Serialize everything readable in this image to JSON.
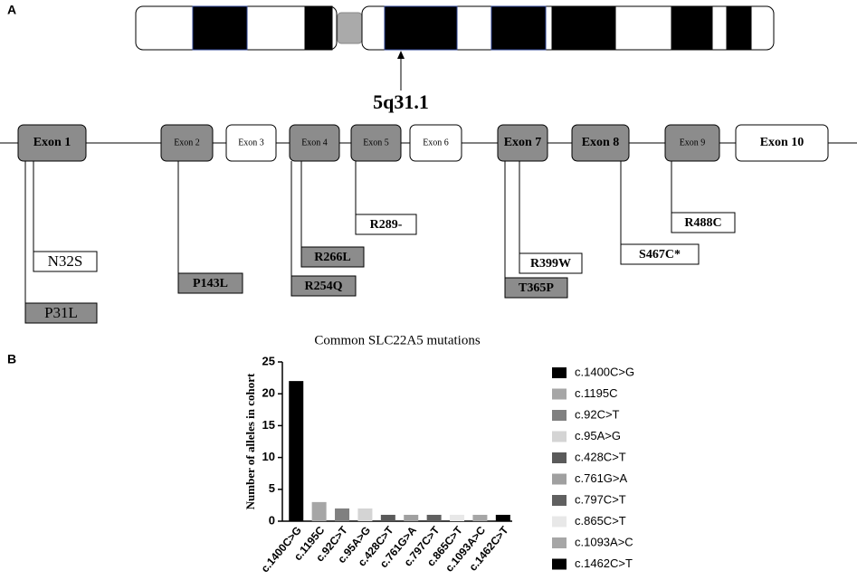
{
  "panel_labels": [
    "A",
    "B"
  ],
  "diagram": {
    "locus": "5q31.1",
    "exons": [
      "Exon 1",
      "Exon 2",
      "Exon 3",
      "Exon 4",
      "Exon 5",
      "Exon 6",
      "Exon 7",
      "Exon 8",
      "Exon 9",
      "Exon 10"
    ],
    "mutations": [
      "N32S",
      "P31L",
      "P143L",
      "R266L",
      "R254Q",
      "R289-",
      "R399W",
      "T365P",
      "S467C*",
      "R488C"
    ]
  },
  "chart_data": {
    "type": "bar",
    "title": "Common SLC22A5 mutations",
    "ylabel": "Number of alleles in cohort",
    "categories": [
      "c.1400C>G",
      "c.1195C",
      "c.92C>T",
      "c.95A>G",
      "c.428C>T",
      "c.761G>A",
      "c.797C>T",
      "c.865C>T",
      "c.1093A>C",
      "c.1462C>T"
    ],
    "values": [
      22,
      3,
      2,
      2,
      1,
      1,
      1,
      1,
      1,
      1
    ],
    "colors": [
      "#000000",
      "#a6a6a6",
      "#808080",
      "#d4d4d4",
      "#5a5a5a",
      "#a0a0a0",
      "#606060",
      "#e8e8e8",
      "#a6a6a6",
      "#000000"
    ],
    "ylim": [
      0,
      25
    ],
    "yticks": [
      0,
      5,
      10,
      15,
      20,
      25
    ],
    "legend": "right"
  }
}
